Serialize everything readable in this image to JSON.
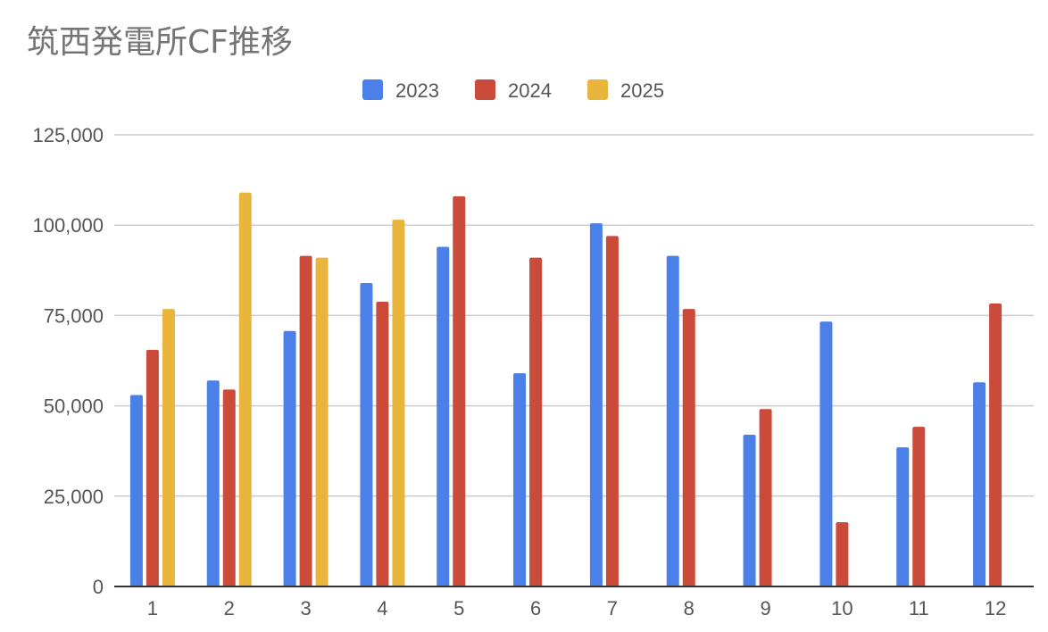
{
  "chart_data": {
    "type": "bar",
    "title": "筑西発電所CF推移",
    "xlabel": "",
    "ylabel": "",
    "categories": [
      "1",
      "2",
      "3",
      "4",
      "5",
      "6",
      "7",
      "8",
      "9",
      "10",
      "11",
      "12"
    ],
    "ylim": [
      0,
      125000
    ],
    "yticks": [
      "0",
      "25,000",
      "50,000",
      "75,000",
      "100,000",
      "125,000"
    ],
    "grid": true,
    "legend_position": "top-center",
    "series": [
      {
        "name": "2023",
        "color": "#4a80e8",
        "values": [
          53000,
          57000,
          70700,
          84000,
          94000,
          59000,
          100500,
          91500,
          42000,
          73300,
          38500,
          56500
        ]
      },
      {
        "name": "2024",
        "color": "#cb4b3b",
        "values": [
          65500,
          54500,
          91500,
          78800,
          108000,
          91000,
          97000,
          76800,
          49100,
          17800,
          44200,
          78300
        ]
      },
      {
        "name": "2025",
        "color": "#e9b53c",
        "values": [
          76800,
          109000,
          91000,
          101500,
          null,
          null,
          null,
          null,
          null,
          null,
          null,
          null
        ]
      }
    ]
  }
}
